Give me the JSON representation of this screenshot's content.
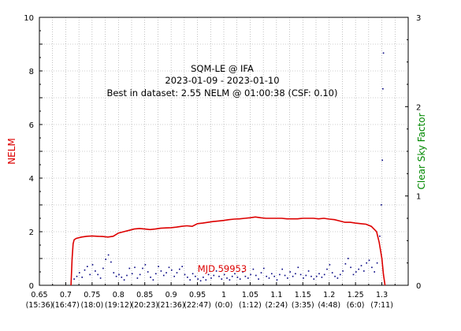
{
  "chart_data": {
    "type": "line",
    "title_lines": [
      "SQM-LE @ IFA",
      "2023-01-09 - 2023-01-10",
      "Best in dataset: 2.55 NELM @ 01:00:38 (CSF: 0.10)"
    ],
    "annotation": "MJD 59953",
    "ylabel": "NELM",
    "y2label": "Clear Sky Factor",
    "xlim": [
      0.65,
      1.35
    ],
    "ylim": [
      0,
      10
    ],
    "y2lim": [
      0,
      3
    ],
    "x_ticks": [
      {
        "v": 0.65,
        "top": "0.65",
        "bottom": "(15:36)"
      },
      {
        "v": 0.7,
        "top": "0.7",
        "bottom": "(16:47)"
      },
      {
        "v": 0.75,
        "top": "0.75",
        "bottom": "(18:0)"
      },
      {
        "v": 0.8,
        "top": "0.8",
        "bottom": "(19:12)"
      },
      {
        "v": 0.85,
        "top": "0.85",
        "bottom": "(20:23)"
      },
      {
        "v": 0.9,
        "top": "0.9",
        "bottom": "(21:36)"
      },
      {
        "v": 0.95,
        "top": "0.95",
        "bottom": "(22:47)"
      },
      {
        "v": 1.0,
        "top": "1",
        "bottom": "(0:0)"
      },
      {
        "v": 1.05,
        "top": "1.05",
        "bottom": "(1:12)"
      },
      {
        "v": 1.1,
        "top": "1.1",
        "bottom": "(2:24)"
      },
      {
        "v": 1.15,
        "top": "1.15",
        "bottom": "(3:35)"
      },
      {
        "v": 1.2,
        "top": "1.2",
        "bottom": "(4:48)"
      },
      {
        "v": 1.25,
        "top": "1.25",
        "bottom": "(6:0)"
      },
      {
        "v": 1.3,
        "top": "1.3",
        "bottom": "(7:11)"
      }
    ],
    "y_ticks": [
      0,
      2,
      4,
      6,
      8,
      10
    ],
    "y2_ticks": [
      0,
      1,
      2,
      3
    ],
    "grid": true,
    "colors": {
      "nelm": "#dd0000",
      "csf": "#000080",
      "right_axis": "#008800",
      "grid": "#999999"
    },
    "series": [
      {
        "name": "NELM",
        "axis": "left",
        "x": [
          0.71,
          0.712,
          0.714,
          0.716,
          0.72,
          0.73,
          0.74,
          0.75,
          0.76,
          0.77,
          0.78,
          0.79,
          0.8,
          0.81,
          0.82,
          0.83,
          0.84,
          0.85,
          0.86,
          0.87,
          0.88,
          0.89,
          0.9,
          0.91,
          0.92,
          0.93,
          0.94,
          0.95,
          0.96,
          0.97,
          0.98,
          0.99,
          1.0,
          1.01,
          1.02,
          1.03,
          1.04,
          1.05,
          1.06,
          1.07,
          1.08,
          1.09,
          1.1,
          1.11,
          1.12,
          1.13,
          1.14,
          1.15,
          1.16,
          1.17,
          1.18,
          1.19,
          1.2,
          1.21,
          1.22,
          1.23,
          1.24,
          1.25,
          1.26,
          1.27,
          1.28,
          1.29,
          1.295,
          1.3,
          1.303,
          1.306
        ],
        "y": [
          0.0,
          1.0,
          1.55,
          1.7,
          1.75,
          1.8,
          1.83,
          1.84,
          1.83,
          1.82,
          1.8,
          1.83,
          1.95,
          2.0,
          2.05,
          2.1,
          2.12,
          2.1,
          2.08,
          2.1,
          2.13,
          2.14,
          2.15,
          2.17,
          2.2,
          2.22,
          2.2,
          2.3,
          2.32,
          2.35,
          2.38,
          2.4,
          2.42,
          2.45,
          2.47,
          2.48,
          2.5,
          2.52,
          2.55,
          2.52,
          2.5,
          2.5,
          2.5,
          2.5,
          2.48,
          2.48,
          2.48,
          2.5,
          2.5,
          2.5,
          2.48,
          2.5,
          2.47,
          2.45,
          2.4,
          2.35,
          2.35,
          2.32,
          2.3,
          2.28,
          2.2,
          2.0,
          1.6,
          1.0,
          0.4,
          0.0
        ]
      },
      {
        "name": "Clear Sky Factor",
        "axis": "right",
        "x": [
          0.716,
          0.721,
          0.726,
          0.731,
          0.736,
          0.741,
          0.746,
          0.751,
          0.756,
          0.761,
          0.766,
          0.771,
          0.776,
          0.781,
          0.786,
          0.791,
          0.796,
          0.801,
          0.806,
          0.811,
          0.816,
          0.821,
          0.826,
          0.831,
          0.836,
          0.841,
          0.846,
          0.851,
          0.856,
          0.861,
          0.866,
          0.871,
          0.876,
          0.881,
          0.886,
          0.891,
          0.896,
          0.901,
          0.906,
          0.911,
          0.916,
          0.921,
          0.926,
          0.931,
          0.936,
          0.941,
          0.946,
          0.951,
          0.956,
          0.961,
          0.966,
          0.971,
          0.976,
          0.981,
          0.986,
          0.991,
          0.996,
          1.001,
          1.006,
          1.011,
          1.016,
          1.021,
          1.026,
          1.031,
          1.036,
          1.041,
          1.046,
          1.051,
          1.056,
          1.061,
          1.066,
          1.071,
          1.076,
          1.081,
          1.086,
          1.091,
          1.096,
          1.101,
          1.106,
          1.111,
          1.116,
          1.121,
          1.126,
          1.131,
          1.136,
          1.141,
          1.146,
          1.151,
          1.156,
          1.161,
          1.166,
          1.171,
          1.176,
          1.181,
          1.186,
          1.191,
          1.196,
          1.201,
          1.206,
          1.211,
          1.216,
          1.221,
          1.226,
          1.231,
          1.236,
          1.241,
          1.246,
          1.251,
          1.256,
          1.261,
          1.266,
          1.271,
          1.276,
          1.281,
          1.286,
          1.291,
          1.296,
          1.299,
          1.301,
          1.302,
          1.303
        ],
        "y": [
          0.07,
          0.1,
          0.14,
          0.09,
          0.17,
          0.21,
          0.12,
          0.23,
          0.16,
          0.12,
          0.08,
          0.19,
          0.29,
          0.34,
          0.26,
          0.14,
          0.1,
          0.12,
          0.09,
          0.06,
          0.11,
          0.19,
          0.13,
          0.2,
          0.08,
          0.12,
          0.19,
          0.23,
          0.15,
          0.09,
          0.06,
          0.13,
          0.21,
          0.16,
          0.11,
          0.14,
          0.2,
          0.17,
          0.1,
          0.14,
          0.18,
          0.21,
          0.12,
          0.09,
          0.06,
          0.13,
          0.1,
          0.07,
          0.05,
          0.09,
          0.06,
          0.12,
          0.08,
          0.11,
          0.16,
          0.1,
          0.07,
          0.12,
          0.08,
          0.06,
          0.1,
          0.13,
          0.09,
          0.07,
          0.15,
          0.1,
          0.08,
          0.12,
          0.18,
          0.11,
          0.07,
          0.14,
          0.19,
          0.1,
          0.08,
          0.13,
          0.1,
          0.06,
          0.12,
          0.18,
          0.11,
          0.08,
          0.15,
          0.1,
          0.13,
          0.2,
          0.12,
          0.08,
          0.11,
          0.16,
          0.1,
          0.07,
          0.1,
          0.13,
          0.09,
          0.12,
          0.18,
          0.23,
          0.14,
          0.1,
          0.08,
          0.12,
          0.16,
          0.24,
          0.3,
          0.2,
          0.12,
          0.15,
          0.18,
          0.22,
          0.16,
          0.25,
          0.28,
          0.2,
          0.15,
          0.25,
          0.55,
          0.9,
          1.4,
          2.2,
          2.6
        ]
      }
    ]
  }
}
